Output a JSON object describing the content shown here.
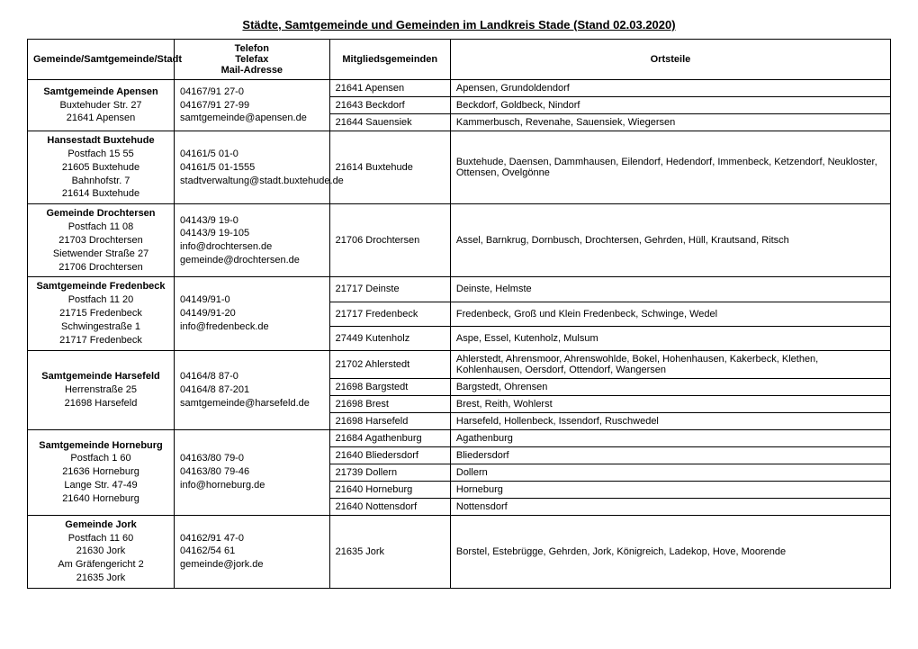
{
  "title": "Städte, Samtgemeinde und Gemeinden im Landkreis Stade (Stand 02.03.2020)",
  "headers": {
    "col1": "Gemeinde/Samtgemeinde/Stadt",
    "col2_l1": "Telefon",
    "col2_l2": "Telefax",
    "col2_l3": "Mail-Adresse",
    "col3": "Mitgliedsgemeinden",
    "col4": "Ortsteile"
  },
  "groups": [
    {
      "name": "Samtgemeinde Apensen",
      "address": [
        "Buxtehuder Str. 27",
        "21641 Apensen"
      ],
      "contact": [
        "04167/91 27-0",
        "04167/91 27-99",
        "samtgemeinde@apensen.de"
      ],
      "rows": [
        {
          "mg": "21641 Apensen",
          "ot": "Apensen, Grundoldendorf"
        },
        {
          "mg": "21643 Beckdorf",
          "ot": "Beckdorf, Goldbeck, Nindorf"
        },
        {
          "mg": "21644 Sauensiek",
          "ot": "Kammerbusch, Revenahe, Sauensiek, Wiegersen"
        }
      ]
    },
    {
      "name": "Hansestadt Buxtehude",
      "address": [
        "Postfach 15 55",
        "21605 Buxtehude",
        "Bahnhofstr. 7",
        "21614 Buxtehude"
      ],
      "contact": [
        "04161/5 01-0",
        "04161/5 01-1555",
        "stadtverwaltung@stadt.buxtehude.de"
      ],
      "rows": [
        {
          "mg": "21614 Buxtehude",
          "ot": "Buxtehude, Daensen, Dammhausen, Eilendorf, Hedendorf, Immenbeck, Ketzendorf, Neukloster, Ottensen, Ovelgönne"
        }
      ]
    },
    {
      "name": "Gemeinde Drochtersen",
      "address": [
        "Postfach 11 08",
        "21703 Drochtersen",
        "Sietwender Straße 27",
        "21706 Drochtersen"
      ],
      "contact": [
        "04143/9 19-0",
        "04143/9 19-105",
        "info@drochtersen.de",
        "gemeinde@drochtersen.de"
      ],
      "rows": [
        {
          "mg": "21706 Drochtersen",
          "ot": "Assel, Barnkrug, Dornbusch, Drochtersen, Gehrden, Hüll, Krautsand, Ritsch"
        }
      ]
    },
    {
      "name": "Samtgemeinde Fredenbeck",
      "address": [
        "Postfach 11 20",
        "21715 Fredenbeck",
        "Schwingestraße 1",
        "21717 Fredenbeck"
      ],
      "contact": [
        "04149/91-0",
        "04149/91-20",
        "info@fredenbeck.de"
      ],
      "rows": [
        {
          "mg": "21717 Deinste",
          "ot": "Deinste, Helmste"
        },
        {
          "mg": "21717 Fredenbeck",
          "ot": "Fredenbeck, Groß und Klein Fredenbeck, Schwinge, Wedel"
        },
        {
          "mg": "27449 Kutenholz",
          "ot": "Aspe, Essel, Kutenholz, Mulsum"
        }
      ]
    },
    {
      "name": "Samtgemeinde Harsefeld",
      "address": [
        "Herrenstraße 25",
        "21698 Harsefeld"
      ],
      "contact": [
        "04164/8 87-0",
        "04164/8 87-201",
        "samtgemeinde@harsefeld.de"
      ],
      "rows": [
        {
          "mg": "21702 Ahlerstedt",
          "ot": "Ahlerstedt, Ahrensmoor, Ahrenswohlde, Bokel, Hohenhausen, Kakerbeck, Klethen, Kohlenhausen, Oersdorf, Ottendorf, Wangersen"
        },
        {
          "mg": "21698 Bargstedt",
          "ot": "Bargstedt, Ohrensen"
        },
        {
          "mg": "21698 Brest",
          "ot": "Brest, Reith, Wohlerst"
        },
        {
          "mg": "21698 Harsefeld",
          "ot": "Harsefeld, Hollenbeck, Issendorf, Ruschwedel"
        }
      ]
    },
    {
      "name": "Samtgemeinde Horneburg",
      "address": [
        "Postfach 1 60",
        "21636 Horneburg",
        "Lange Str. 47-49",
        "21640 Horneburg"
      ],
      "contact": [
        "04163/80 79-0",
        "04163/80 79-46",
        "info@horneburg.de"
      ],
      "rows": [
        {
          "mg": "21684 Agathenburg",
          "ot": "Agathenburg"
        },
        {
          "mg": "21640 Bliedersdorf",
          "ot": "Bliedersdorf"
        },
        {
          "mg": "21739 Dollern",
          "ot": "Dollern"
        },
        {
          "mg": "21640 Horneburg",
          "ot": "Horneburg"
        },
        {
          "mg": "21640 Nottensdorf",
          "ot": "Nottensdorf"
        }
      ]
    },
    {
      "name": "Gemeinde Jork",
      "address": [
        "Postfach 11 60",
        "21630 Jork",
        "Am Gräfengericht 2",
        "21635 Jork"
      ],
      "contact": [
        "04162/91 47-0",
        "04162/54 61",
        "gemeinde@jork.de"
      ],
      "rows": [
        {
          "mg": "21635 Jork",
          "ot": "Borstel, Estebrügge, Gehrden, Jork, Königreich, Ladekop, Hove, Moorende"
        }
      ]
    }
  ]
}
